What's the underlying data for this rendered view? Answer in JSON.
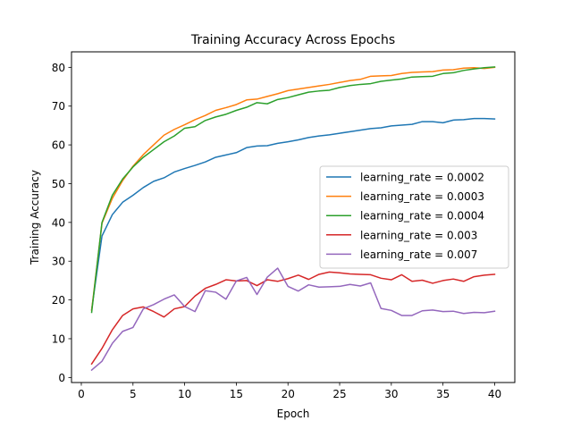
{
  "chart_data": {
    "type": "line",
    "title": "Training Accuracy Across Epochs",
    "xlabel": "Epoch",
    "ylabel": "Training Accuracy",
    "xlim": [
      -0.95,
      41.95
    ],
    "ylim": [
      -1.3,
      84
    ],
    "xticks": [
      0,
      5,
      10,
      15,
      20,
      25,
      30,
      35,
      40
    ],
    "yticks": [
      0,
      10,
      20,
      30,
      40,
      50,
      60,
      70,
      80
    ],
    "grid": false,
    "legend_position": "center-right",
    "x": [
      1,
      2,
      3,
      4,
      5,
      6,
      7,
      8,
      9,
      10,
      11,
      12,
      13,
      14,
      15,
      16,
      17,
      18,
      19,
      20,
      21,
      22,
      23,
      24,
      25,
      26,
      27,
      28,
      29,
      30,
      31,
      32,
      33,
      34,
      35,
      36,
      37,
      38,
      39,
      40
    ],
    "series": [
      {
        "name": "learning_rate = 0.0002",
        "color": "#1f77b4",
        "values": [
          17.5,
          36.5,
          42.0,
          45.2,
          47.0,
          49.0,
          50.6,
          51.5,
          53.0,
          53.9,
          54.7,
          55.6,
          56.8,
          57.4,
          58.0,
          59.3,
          59.7,
          59.8,
          60.4,
          60.8,
          61.3,
          61.9,
          62.3,
          62.6,
          63.0,
          63.4,
          63.8,
          64.2,
          64.4,
          64.9,
          65.1,
          65.3,
          66.0,
          66.0,
          65.7,
          66.4,
          66.5,
          66.8,
          66.8,
          66.7
        ]
      },
      {
        "name": "learning_rate = 0.0003",
        "color": "#ff7f0e",
        "values": [
          17.3,
          39.8,
          46.2,
          50.8,
          54.5,
          57.5,
          60.0,
          62.5,
          64.0,
          65.2,
          66.5,
          67.6,
          68.9,
          69.6,
          70.4,
          71.6,
          71.8,
          72.5,
          73.2,
          74.0,
          74.4,
          74.8,
          75.2,
          75.6,
          76.1,
          76.6,
          76.9,
          77.7,
          77.8,
          77.9,
          78.4,
          78.7,
          78.8,
          78.9,
          79.3,
          79.4,
          79.8,
          79.9,
          79.7,
          80.0
        ]
      },
      {
        "name": "learning_rate = 0.0004",
        "color": "#2ca02c",
        "values": [
          16.8,
          40.0,
          47.0,
          51.2,
          54.3,
          56.8,
          58.8,
          60.8,
          62.3,
          64.3,
          64.7,
          66.3,
          67.2,
          67.9,
          68.9,
          69.7,
          70.9,
          70.6,
          71.7,
          72.2,
          72.9,
          73.6,
          73.9,
          74.1,
          74.8,
          75.3,
          75.6,
          75.8,
          76.4,
          76.7,
          77.0,
          77.5,
          77.6,
          77.7,
          78.4,
          78.6,
          79.2,
          79.6,
          79.9,
          80.1
        ]
      },
      {
        "name": "learning_rate = 0.003",
        "color": "#d62728",
        "values": [
          3.5,
          7.5,
          12.3,
          16.0,
          17.7,
          18.2,
          17.0,
          15.6,
          17.7,
          18.3,
          21.0,
          23.0,
          24.0,
          25.2,
          24.9,
          25.0,
          23.7,
          25.2,
          24.8,
          25.5,
          26.4,
          25.3,
          26.6,
          27.2,
          27.0,
          26.7,
          26.6,
          26.5,
          25.6,
          25.2,
          26.5,
          24.8,
          25.1,
          24.3,
          25.0,
          25.4,
          24.8,
          26.0,
          26.4,
          26.6
        ]
      },
      {
        "name": "learning_rate = 0.007",
        "color": "#9467bd",
        "values": [
          1.9,
          4.2,
          8.8,
          11.9,
          12.9,
          17.7,
          18.8,
          20.2,
          21.3,
          18.3,
          17.0,
          22.4,
          22.0,
          20.2,
          24.9,
          25.8,
          21.4,
          25.9,
          28.2,
          23.5,
          22.3,
          23.9,
          23.3,
          23.4,
          23.5,
          24.0,
          23.6,
          24.4,
          17.8,
          17.3,
          16.0,
          16.0,
          17.2,
          17.4,
          17.0,
          17.1,
          16.5,
          16.8,
          16.7,
          17.1
        ]
      }
    ]
  }
}
